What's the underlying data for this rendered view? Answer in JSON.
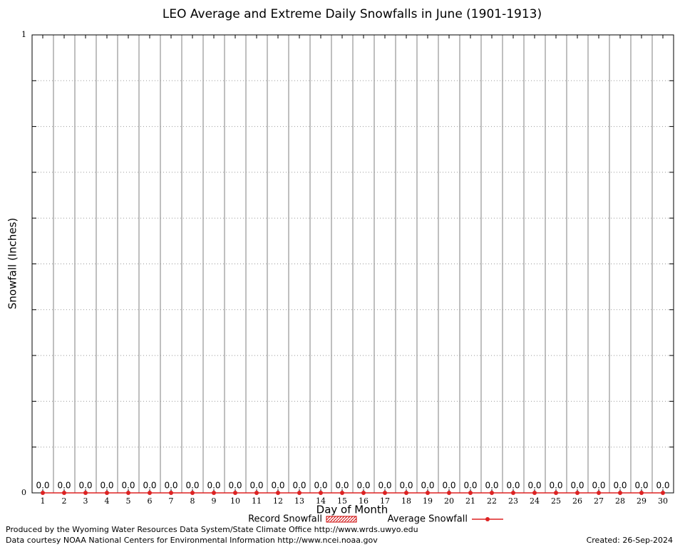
{
  "chart_data": {
    "type": "line",
    "title": "LEO Average and Extreme Daily Snowfalls in June (1901-1913)",
    "x_label": "Day of Month",
    "y_label": "Snowfall (Inches)",
    "x": [
      1,
      2,
      3,
      4,
      5,
      6,
      7,
      8,
      9,
      10,
      11,
      12,
      13,
      14,
      15,
      16,
      17,
      18,
      19,
      20,
      21,
      22,
      23,
      24,
      25,
      26,
      27,
      28,
      29,
      30
    ],
    "xlim": [
      0.5,
      30.5
    ],
    "xticks": [
      1,
      2,
      3,
      4,
      5,
      6,
      7,
      8,
      9,
      10,
      11,
      12,
      13,
      14,
      15,
      16,
      17,
      18,
      19,
      20,
      21,
      22,
      23,
      24,
      25,
      26,
      27,
      28,
      29,
      30
    ],
    "ylim": [
      0,
      1
    ],
    "yticks": [
      0,
      1
    ],
    "yminorticks": [
      0.1,
      0.2,
      0.3,
      0.4,
      0.5,
      0.6,
      0.7,
      0.8,
      0.9
    ],
    "grid": true,
    "series": [
      {
        "name": "Record Snowfall",
        "color": "#cc0000",
        "style": "bar",
        "values": [
          0,
          0,
          0,
          0,
          0,
          0,
          0,
          0,
          0,
          0,
          0,
          0,
          0,
          0,
          0,
          0,
          0,
          0,
          0,
          0,
          0,
          0,
          0,
          0,
          0,
          0,
          0,
          0,
          0,
          0
        ]
      },
      {
        "name": "Average Snowfall",
        "color": "#dd2222",
        "style": "line",
        "values": [
          0,
          0,
          0,
          0,
          0,
          0,
          0,
          0,
          0,
          0,
          0,
          0,
          0,
          0,
          0,
          0,
          0,
          0,
          0,
          0,
          0,
          0,
          0,
          0,
          0,
          0,
          0,
          0,
          0,
          0
        ],
        "value_labels": [
          "0.0",
          "0.0",
          "0.0",
          "0.0",
          "0.0",
          "0.0",
          "0.0",
          "0.0",
          "0.0",
          "0.0",
          "0.0",
          "0.0",
          "0.0",
          "0.0",
          "0.0",
          "0.0",
          "0.0",
          "0.0",
          "0.0",
          "0.0",
          "0.0",
          "0.0",
          "0.0",
          "0.0",
          "0.0",
          "0.0",
          "0.0",
          "0.0",
          "0.0",
          "0.0"
        ]
      }
    ],
    "footer": {
      "produced": "Produced by the Wyoming Water Resources Data System/State Climate Office http://www.wrds.uwyo.edu",
      "courtesy": "Data courtesy NOAA National Centers for Environmental Information http://www.ncei.noaa.gov",
      "created": "Created: 26-Sep-2024"
    }
  }
}
